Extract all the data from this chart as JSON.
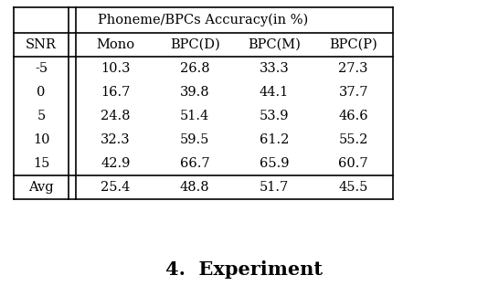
{
  "title": "Phoneme/BPCs Accuracy(in %)",
  "col_headers": [
    "SNR",
    "Mono",
    "BPC(D)",
    "BPC(M)",
    "BPC(P)"
  ],
  "rows": [
    [
      "-5",
      "10.3",
      "26.8",
      "33.3",
      "27.3"
    ],
    [
      "0",
      "16.7",
      "39.8",
      "44.1",
      "37.7"
    ],
    [
      "5",
      "24.8",
      "51.4",
      "53.9",
      "46.6"
    ],
    [
      "10",
      "32.3",
      "59.5",
      "61.2",
      "55.2"
    ],
    [
      "15",
      "42.9",
      "66.7",
      "65.9",
      "60.7"
    ]
  ],
  "avg_row": [
    "Avg",
    "25.4",
    "48.8",
    "51.7",
    "45.5"
  ],
  "section_title": "4.  Experiment",
  "bg_color": "#ffffff",
  "text_color": "#000000",
  "table_font_size": 10.5,
  "section_font_size": 15
}
